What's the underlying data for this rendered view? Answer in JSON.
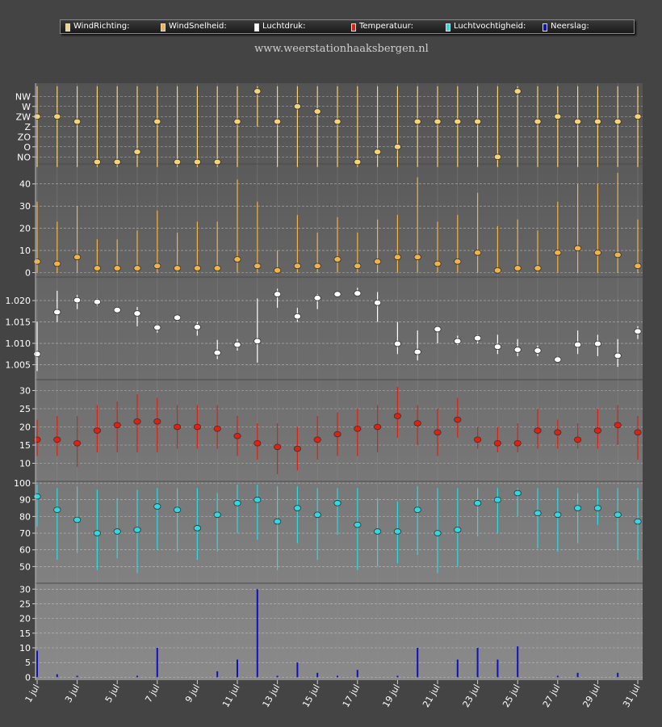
{
  "legend": [
    {
      "label": "WindRichting:",
      "color": "#f5d37a"
    },
    {
      "label": "WindSnelheid:",
      "color": "#f0b24a"
    },
    {
      "label": "Luchtdruk:",
      "color": "#ffffff"
    },
    {
      "label": "Temperatuur:",
      "color": "#e02010"
    },
    {
      "label": "Luchtvochtigheid:",
      "color": "#30d8e0"
    },
    {
      "label": "Neerslag:",
      "color": "#1010c0"
    }
  ],
  "site": "www.weerstationhaaksbergen.nl",
  "chart_data": {
    "type": "multi-panel",
    "x": [
      1,
      2,
      3,
      4,
      5,
      6,
      7,
      8,
      9,
      10,
      11,
      12,
      13,
      14,
      15,
      16,
      17,
      18,
      19,
      20,
      21,
      22,
      23,
      24,
      25,
      26,
      27,
      28,
      29,
      30,
      31
    ],
    "x_tick_labels": [
      "1 jul",
      "3 jul",
      "5 jul",
      "7 jul",
      "9 jul",
      "11 jul",
      "13 jul",
      "15 jul",
      "17 jul",
      "19 jul",
      "21 jul",
      "23 jul",
      "25 jul",
      "27 jul",
      "29 jul",
      "31 jul"
    ],
    "panels": [
      {
        "name": "WindRichting",
        "type": "range-dot",
        "ticks": [
          "NW",
          "W",
          "ZW",
          "Z",
          "ZO",
          "O",
          "NO"
        ],
        "ylim": [
          -0.7,
          7.3
        ],
        "values": [
          4,
          4,
          3.5,
          -0.5,
          -0.5,
          0.5,
          3.5,
          -0.5,
          -0.5,
          -0.5,
          3.5,
          6.5,
          3.5,
          5,
          4.5,
          3.5,
          -0.5,
          0.5,
          1,
          3.5,
          3.5,
          3.5,
          3.5,
          0,
          6.5,
          3.5,
          4,
          3.5,
          3.5,
          3.5,
          4
        ],
        "low": [
          -1,
          -1,
          -1,
          -1,
          -1,
          -1,
          -1,
          -1,
          -1,
          -1,
          -1,
          3,
          -1,
          -1,
          -1,
          -1,
          -1,
          -1,
          -1,
          -1,
          -1,
          -1,
          -1,
          -1,
          -1,
          -1,
          -1,
          -1,
          -1,
          -1,
          -1
        ],
        "high": [
          7,
          7,
          7,
          7,
          7,
          7,
          7,
          7,
          7,
          7,
          7,
          7,
          7,
          7,
          7,
          7,
          7,
          7,
          7,
          7,
          7,
          7,
          7,
          7,
          7,
          7,
          7,
          7,
          7,
          7,
          7
        ],
        "color": "#f5d37a"
      },
      {
        "name": "WindSnelheid",
        "type": "range-dot",
        "ticks": [
          0,
          10,
          20,
          30,
          40
        ],
        "ylim": [
          -2,
          49
        ],
        "values": [
          5,
          4,
          7,
          2,
          2,
          2,
          3,
          2,
          2,
          2,
          6,
          3,
          1,
          3,
          3,
          6,
          3,
          5,
          7,
          7,
          4,
          5,
          9,
          1,
          2,
          2,
          9,
          11,
          9,
          8,
          3
        ],
        "low": [
          0,
          0,
          0,
          0,
          0,
          0,
          0,
          0,
          0,
          0,
          0,
          0,
          0,
          0,
          0,
          0,
          0,
          0,
          0,
          0,
          0,
          0,
          0,
          0,
          0,
          0,
          0,
          0,
          0,
          0,
          0
        ],
        "high": [
          32,
          23,
          30,
          15,
          15,
          19,
          28,
          18,
          23,
          23,
          42,
          32,
          10,
          26,
          18,
          25,
          18,
          24,
          26,
          43,
          23,
          26,
          36,
          21,
          24,
          19,
          32,
          40,
          40,
          45,
          24
        ],
        "color": "#f0b24a"
      },
      {
        "name": "Luchtdruk",
        "type": "range-dot",
        "ticks": [
          1.005,
          1.01,
          1.015,
          1.02
        ],
        "tick_labels": [
          "1.005",
          "1.010",
          "1.015",
          "1.020"
        ],
        "ylim": [
          1.0015,
          1.0255
        ],
        "values": [
          1.0075,
          1.0173,
          1.0201,
          1.0197,
          1.0178,
          1.017,
          1.0137,
          1.016,
          1.0138,
          1.0078,
          1.0097,
          1.0105,
          1.0215,
          1.0163,
          1.0206,
          1.0215,
          1.0217,
          1.0195,
          1.0099,
          1.008,
          1.0133,
          1.0105,
          1.0112,
          1.0092,
          1.0085,
          1.0083,
          1.0062,
          1.0097,
          1.0099,
          1.0071,
          1.0128
        ],
        "low": [
          1.0035,
          1.015,
          1.018,
          1.0188,
          1.0172,
          1.014,
          1.0125,
          1.0152,
          1.0118,
          1.0063,
          1.0083,
          1.0055,
          1.0183,
          1.015,
          1.018,
          1.021,
          1.021,
          1.015,
          1.0075,
          1.006,
          1.01,
          1.0096,
          1.01,
          1.0075,
          1.007,
          1.007,
          1.0055,
          1.0075,
          1.007,
          1.0045,
          1.011
        ],
        "high": [
          1.015,
          1.0223,
          1.0213,
          1.0205,
          1.0185,
          1.0185,
          1.0145,
          1.0165,
          1.015,
          1.0108,
          1.011,
          1.0205,
          1.0228,
          1.0183,
          1.0215,
          1.022,
          1.023,
          1.022,
          1.015,
          1.013,
          1.014,
          1.0118,
          1.012,
          1.012,
          1.011,
          1.0095,
          1.007,
          1.013,
          1.012,
          1.011,
          1.014
        ],
        "color": "#ffffff"
      },
      {
        "name": "Temperatuur",
        "type": "range-dot",
        "ticks": [
          10,
          15,
          20,
          25,
          30
        ],
        "ylim": [
          5,
          33
        ],
        "values": [
          16.5,
          16.5,
          15.5,
          19,
          20.5,
          21.5,
          21.5,
          20,
          20,
          19.5,
          17.5,
          15.5,
          14.5,
          14,
          16.5,
          18,
          19.5,
          20,
          23,
          21,
          18.5,
          22,
          16.5,
          15.5,
          15.5,
          19,
          18.5,
          16.5,
          19,
          20.5,
          18.5
        ],
        "low": [
          12,
          12,
          9,
          13,
          13,
          13,
          13,
          14,
          14,
          14,
          12,
          11,
          7,
          8,
          11,
          12,
          12,
          13,
          17,
          15,
          12,
          17,
          14,
          13,
          13,
          14,
          14,
          14,
          14,
          15,
          11
        ],
        "high": [
          22,
          23,
          23,
          26,
          27,
          29,
          28,
          26,
          26,
          26,
          23,
          21,
          21,
          20,
          23,
          24,
          25,
          26,
          31,
          26,
          25,
          28,
          20,
          20,
          21,
          25,
          22,
          21,
          25,
          26,
          23
        ],
        "color": "#e02010"
      },
      {
        "name": "Luchtvochtigheid",
        "type": "range-dot",
        "ticks": [
          50,
          60,
          70,
          80,
          90,
          100
        ],
        "ylim": [
          40,
          101
        ],
        "values": [
          92,
          84,
          78,
          70,
          71,
          72,
          86,
          84,
          73,
          81,
          88,
          90,
          77,
          85,
          81,
          88,
          75,
          71,
          71,
          84,
          70,
          72,
          88,
          90,
          94,
          82,
          81,
          85,
          85,
          81,
          77
        ],
        "low": [
          74,
          54,
          58,
          48,
          55,
          46,
          60,
          59,
          54,
          59,
          70,
          66,
          48,
          64,
          54,
          69,
          48,
          50,
          52,
          57,
          46,
          50,
          68,
          70,
          80,
          61,
          59,
          64,
          75,
          60,
          54
        ],
        "high": [
          99,
          97,
          98,
          96,
          91,
          96,
          97,
          97,
          97,
          94,
          99,
          99,
          98,
          98,
          97,
          97,
          97,
          91,
          89,
          98,
          97,
          97,
          97,
          97,
          97,
          97,
          97,
          94,
          97,
          97,
          97
        ],
        "color": "#30d8e0"
      },
      {
        "name": "Neerslag",
        "type": "bar",
        "ticks": [
          0,
          5,
          10,
          15,
          20,
          25,
          30
        ],
        "ylim": [
          -1,
          32
        ],
        "values": [
          9,
          1,
          0.5,
          0,
          0,
          0.5,
          10,
          0,
          0,
          2,
          6,
          30,
          0.5,
          5,
          1.5,
          0.5,
          2.5,
          0,
          0.5,
          10,
          0,
          6,
          10,
          6,
          10.5,
          0,
          0.5,
          1.5,
          0,
          1.5,
          0
        ],
        "color": "#1010c0"
      }
    ]
  }
}
